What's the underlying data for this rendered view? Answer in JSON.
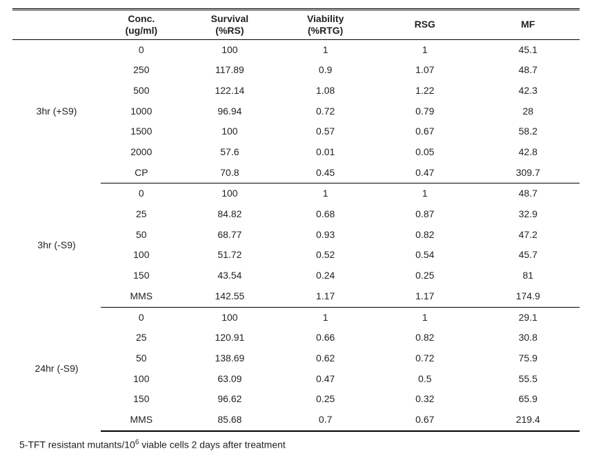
{
  "headers": {
    "blank": "",
    "conc_l1": "Conc.",
    "conc_l2": "(ug/ml)",
    "surv_l1": "Survival",
    "surv_l2": "(%RS)",
    "viab_l1": "Viability",
    "viab_l2": "(%RTG)",
    "rsg": "RSG",
    "mf": "MF"
  },
  "sections": [
    {
      "label": "3hr (+S9)",
      "rows": [
        {
          "conc": "0",
          "surv": "100",
          "viab": "1",
          "rsg": "1",
          "mf": "45.1"
        },
        {
          "conc": "250",
          "surv": "117.89",
          "viab": "0.9",
          "rsg": "1.07",
          "mf": "48.7"
        },
        {
          "conc": "500",
          "surv": "122.14",
          "viab": "1.08",
          "rsg": "1.22",
          "mf": "42.3"
        },
        {
          "conc": "1000",
          "surv": "96.94",
          "viab": "0.72",
          "rsg": "0.79",
          "mf": "28"
        },
        {
          "conc": "1500",
          "surv": "100",
          "viab": "0.57",
          "rsg": "0.67",
          "mf": "58.2"
        },
        {
          "conc": "2000",
          "surv": "57.6",
          "viab": "0.01",
          "rsg": "0.05",
          "mf": "42.8"
        },
        {
          "conc": "CP",
          "surv": "70.8",
          "viab": "0.45",
          "rsg": "0.47",
          "mf": "309.7"
        }
      ]
    },
    {
      "label": "3hr (-S9)",
      "rows": [
        {
          "conc": "0",
          "surv": "100",
          "viab": "1",
          "rsg": "1",
          "mf": "48.7"
        },
        {
          "conc": "25",
          "surv": "84.82",
          "viab": "0.68",
          "rsg": "0.87",
          "mf": "32.9"
        },
        {
          "conc": "50",
          "surv": "68.77",
          "viab": "0.93",
          "rsg": "0.82",
          "mf": "47.2"
        },
        {
          "conc": "100",
          "surv": "51.72",
          "viab": "0.52",
          "rsg": "0.54",
          "mf": "45.7"
        },
        {
          "conc": "150",
          "surv": "43.54",
          "viab": "0.24",
          "rsg": "0.25",
          "mf": "81"
        },
        {
          "conc": "MMS",
          "surv": "142.55",
          "viab": "1.17",
          "rsg": "1.17",
          "mf": "174.9"
        }
      ]
    },
    {
      "label": "24hr (-S9)",
      "rows": [
        {
          "conc": "0",
          "surv": "100",
          "viab": "1",
          "rsg": "1",
          "mf": "29.1"
        },
        {
          "conc": "25",
          "surv": "120.91",
          "viab": "0.66",
          "rsg": "0.82",
          "mf": "30.8"
        },
        {
          "conc": "50",
          "surv": "138.69",
          "viab": "0.62",
          "rsg": "0.72",
          "mf": "75.9"
        },
        {
          "conc": "100",
          "surv": "63.09",
          "viab": "0.47",
          "rsg": "0.5",
          "mf": "55.5"
        },
        {
          "conc": "150",
          "surv": "96.62",
          "viab": "0.25",
          "rsg": "0.32",
          "mf": "65.9"
        },
        {
          "conc": "MMS",
          "surv": "85.68",
          "viab": "0.7",
          "rsg": "0.67",
          "mf": "219.4"
        }
      ]
    }
  ],
  "footnote_pre": "5-TFT resistant mutants/10",
  "footnote_sup": "6",
  "footnote_post": " viable cells 2 days after treatment"
}
